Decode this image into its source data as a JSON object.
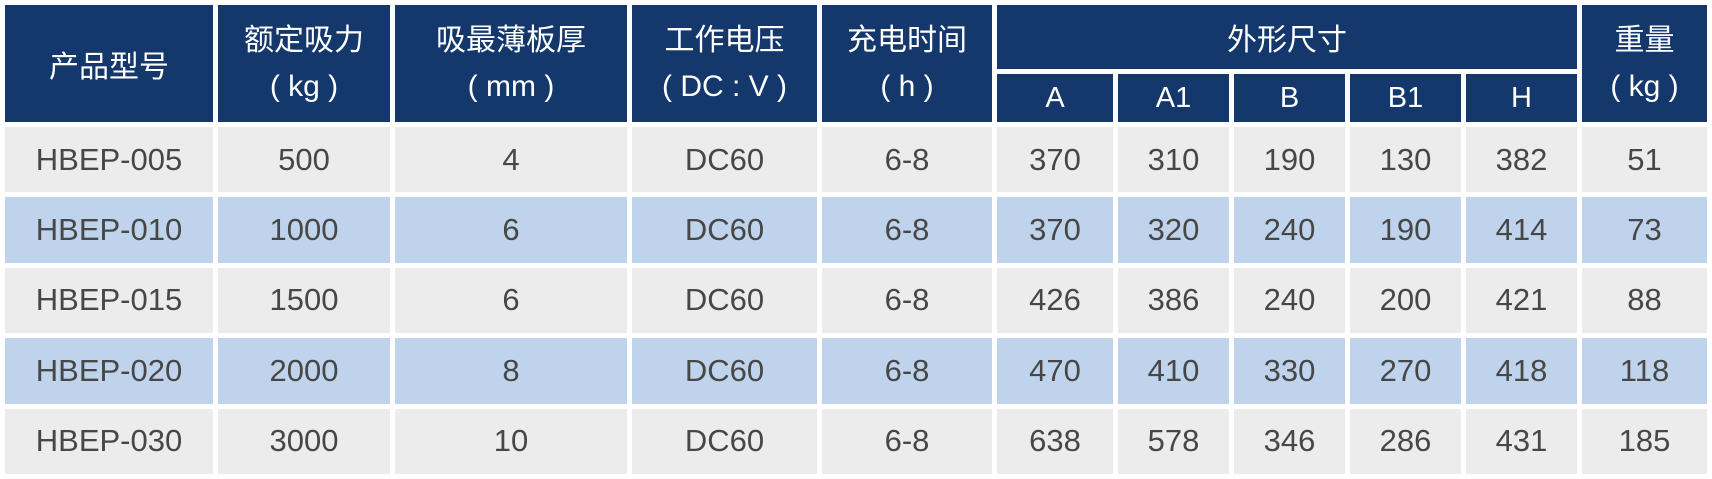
{
  "colors": {
    "header_bg": "#14386b",
    "header_text": "#ffffff",
    "row_bg": "#ececec",
    "row_alt_bg": "#bfd4ec",
    "body_text": "#474747",
    "gutter": "#ffffff"
  },
  "chart_data": {
    "type": "table",
    "header": {
      "product_model": "产品型号",
      "rated_force": [
        "额定吸力",
        "( kg )"
      ],
      "min_plate_thickness": [
        "吸最薄板厚",
        "( mm )"
      ],
      "working_voltage": [
        "工作电压",
        "( DC : V )"
      ],
      "charge_time": [
        "充电时间",
        "( h )"
      ],
      "dimensions": "外形尺寸",
      "dim_cols": [
        "A",
        "A1",
        "B",
        "B1",
        "H"
      ],
      "weight": [
        "重量",
        "( kg )"
      ]
    },
    "rows": [
      [
        "HBEP-005",
        "500",
        "4",
        "DC60",
        "6-8",
        "370",
        "310",
        "190",
        "130",
        "382",
        "51"
      ],
      [
        "HBEP-010",
        "1000",
        "6",
        "DC60",
        "6-8",
        "370",
        "320",
        "240",
        "190",
        "414",
        "73"
      ],
      [
        "HBEP-015",
        "1500",
        "6",
        "DC60",
        "6-8",
        "426",
        "386",
        "240",
        "200",
        "421",
        "88"
      ],
      [
        "HBEP-020",
        "2000",
        "8",
        "DC60",
        "6-8",
        "470",
        "410",
        "330",
        "270",
        "418",
        "118"
      ],
      [
        "HBEP-030",
        "3000",
        "10",
        "DC60",
        "6-8",
        "638",
        "578",
        "346",
        "286",
        "431",
        "185"
      ]
    ]
  }
}
